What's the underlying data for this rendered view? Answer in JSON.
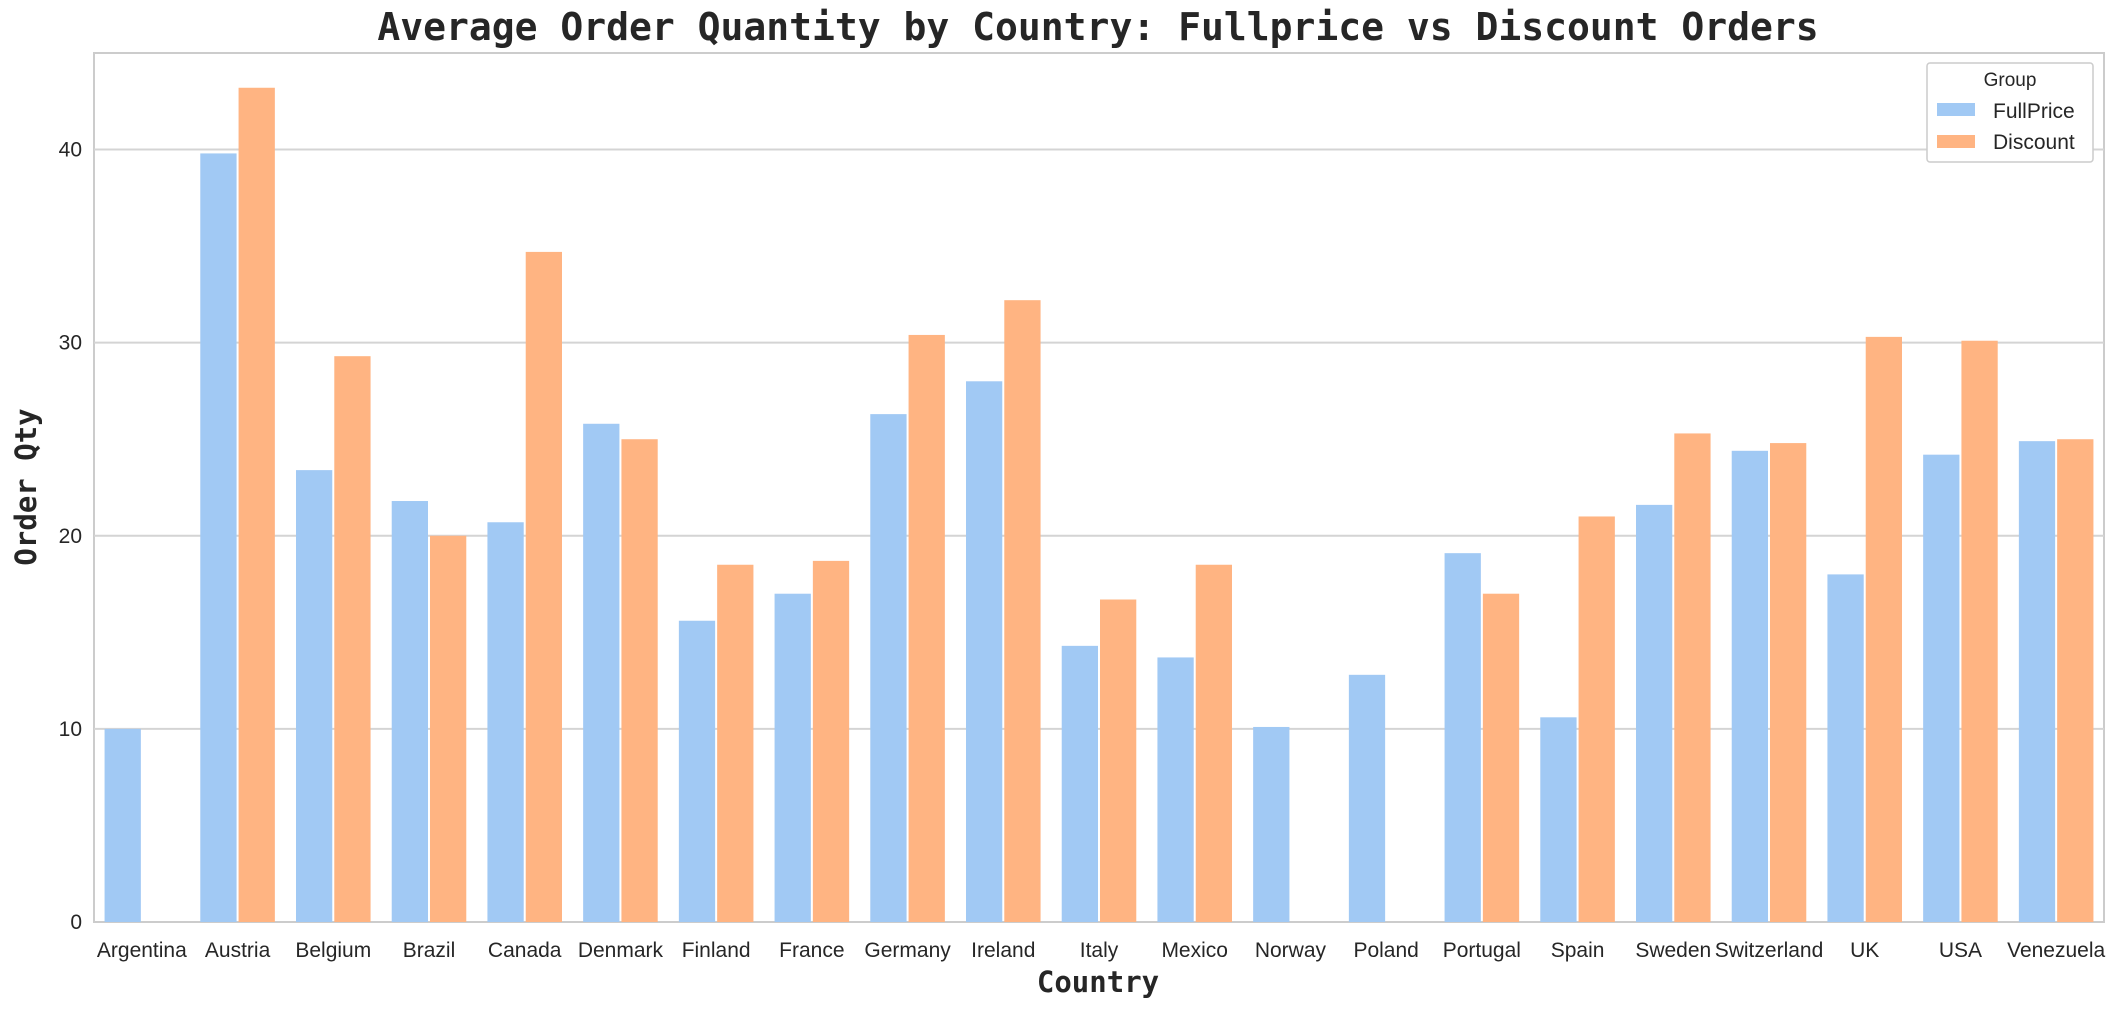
{
  "chart_data": {
    "type": "bar",
    "title": "Average Order Quantity by Country: Fullprice vs Discount Orders",
    "xlabel": "Country",
    "ylabel": "Order Qty",
    "ylim": [
      0,
      45
    ],
    "yticks": [
      0,
      10,
      20,
      30,
      40
    ],
    "grid": true,
    "legend": {
      "title": "Group",
      "position": "top-right"
    },
    "categories": [
      "Argentina",
      "Austria",
      "Belgium",
      "Brazil",
      "Canada",
      "Denmark",
      "Finland",
      "France",
      "Germany",
      "Ireland",
      "Italy",
      "Mexico",
      "Norway",
      "Poland",
      "Portugal",
      "Spain",
      "Sweden",
      "Switzerland",
      "UK",
      "USA",
      "Venezuela"
    ],
    "series": [
      {
        "name": "FullPrice",
        "color": "#a1c9f4",
        "values": [
          10.0,
          39.8,
          23.4,
          21.8,
          20.7,
          25.8,
          15.6,
          17.0,
          26.3,
          28.0,
          14.3,
          13.7,
          10.1,
          12.8,
          19.1,
          10.6,
          21.6,
          24.4,
          18.0,
          24.2,
          24.9
        ]
      },
      {
        "name": "Discount",
        "color": "#ffb482",
        "values": [
          null,
          43.2,
          29.3,
          20.0,
          34.7,
          25.0,
          18.5,
          18.7,
          30.4,
          32.2,
          16.7,
          18.5,
          null,
          null,
          17.0,
          21.0,
          25.3,
          24.8,
          30.3,
          30.1,
          25.0
        ]
      }
    ]
  }
}
